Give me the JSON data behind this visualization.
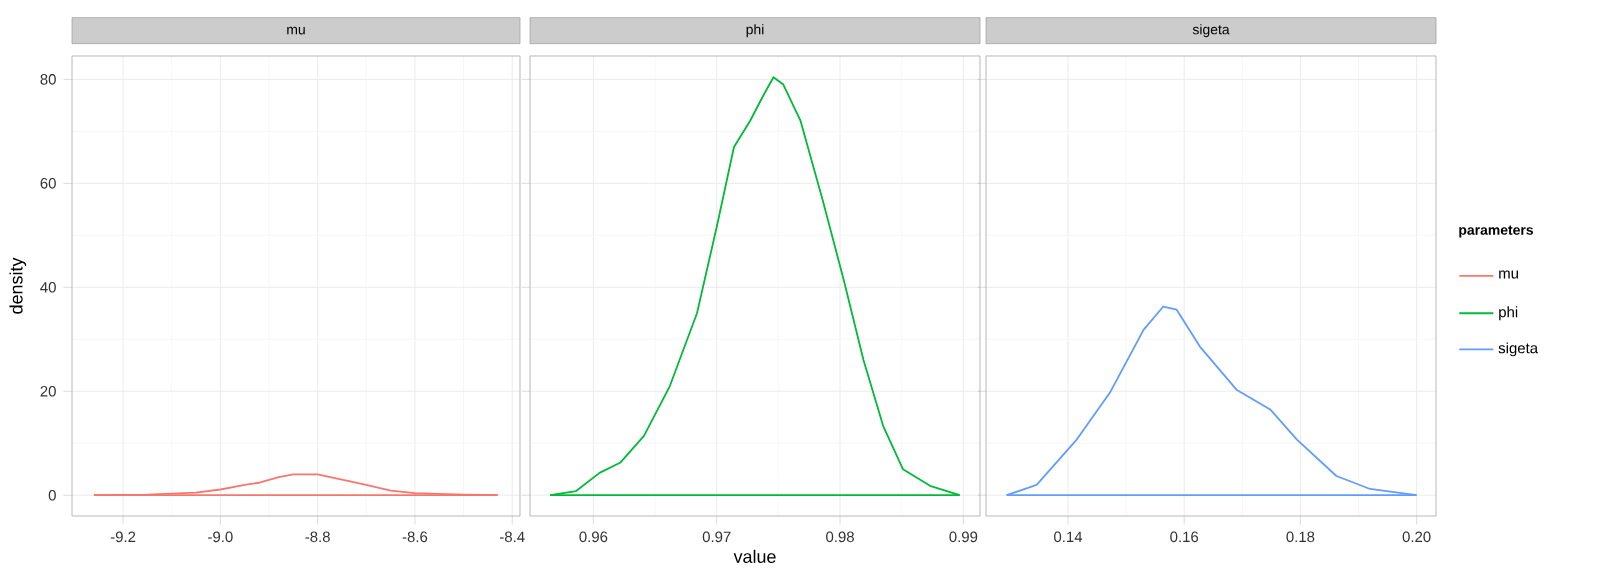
{
  "chart_data": [
    {
      "type": "line",
      "title": "mu",
      "ylabel": "density",
      "xlim": [
        -9.305,
        -8.384
      ],
      "ylim": [
        -4,
        84.5
      ],
      "xticks": [
        -9.2,
        {
          "value": -9,
          "label": "-9.0"
        },
        -8.8,
        -8.6,
        -8.4
      ],
      "yticks": [
        0,
        20,
        40,
        60,
        80
      ],
      "grid": true,
      "legend": "right",
      "ref_lines": [
        {
          "axis": "y",
          "value": 0,
          "color": "#f8766d"
        }
      ],
      "series": [
        {
          "name": "mu",
          "color": "#f8766d",
          "x": [
            -9.26,
            -9.15,
            -9.05,
            -9.0,
            -8.95,
            -8.92,
            -8.88,
            -8.85,
            -8.8,
            -8.75,
            -8.7,
            -8.65,
            -8.6,
            -8.5,
            -8.43
          ],
          "values": [
            0,
            0.1,
            0.5,
            1.1,
            2,
            2.4,
            3.5,
            4,
            4,
            3,
            2,
            0.9,
            0.4,
            0.1,
            0
          ]
        }
      ]
    },
    {
      "type": "line",
      "title": "phi",
      "xlabel": "value",
      "xlim": [
        0.95486,
        0.99135
      ],
      "ylim": [
        -4,
        84.5
      ],
      "xticks": [
        0.96,
        0.97,
        0.98,
        0.99
      ],
      "yticks": [
        0,
        20,
        40,
        60,
        80
      ],
      "tick_labels": "x",
      "grid": true,
      "legend": "right",
      "ref_lines": [
        {
          "axis": "y",
          "value": 0,
          "color": "#00ba38"
        }
      ],
      "series": [
        {
          "name": "phi",
          "color": "#00ba38",
          "x": [
            0.9565,
            0.9586,
            0.9605,
            0.9622,
            0.9641,
            0.9662,
            0.9684,
            0.97,
            0.9714,
            0.9727,
            0.9738,
            0.9746,
            0.9754,
            0.9768,
            0.9786,
            0.9803,
            0.9819,
            0.9835,
            0.9851,
            0.9873,
            0.9897
          ],
          "values": [
            0,
            0.8,
            4.3,
            6.3,
            11.4,
            21,
            35,
            51.6,
            67,
            72,
            77,
            80.4,
            79,
            72,
            56.7,
            41.4,
            26,
            13.3,
            5,
            1.8,
            0
          ]
        }
      ]
    },
    {
      "type": "line",
      "title": "sigeta",
      "legend_title": "parameters",
      "xlim": [
        0.12589,
        0.20334
      ],
      "ylim": [
        -4,
        84.5
      ],
      "xticks": [
        0.14,
        0.16,
        0.18,
        {
          "value": 0.2,
          "label": "0.20"
        }
      ],
      "yticks": [
        0,
        20,
        40,
        60,
        80
      ],
      "tick_labels": "x",
      "grid": true,
      "legend": "right",
      "ref_lines": [
        {
          "axis": "y",
          "value": 0,
          "color": "#619cff"
        }
      ],
      "series": [
        {
          "name": "sigeta",
          "color": "#619cff",
          "x": [
            0.12944,
            0.1346,
            0.1415,
            0.1472,
            0.153,
            0.1564,
            0.1587,
            0.1627,
            0.169,
            0.1748,
            0.1794,
            0.1862,
            0.192,
            0.2
          ],
          "values": [
            0,
            2,
            10.7,
            19.7,
            31.8,
            36.3,
            35.7,
            28.6,
            20.3,
            16.5,
            10.7,
            3.7,
            1.2,
            0
          ]
        }
      ]
    }
  ]
}
